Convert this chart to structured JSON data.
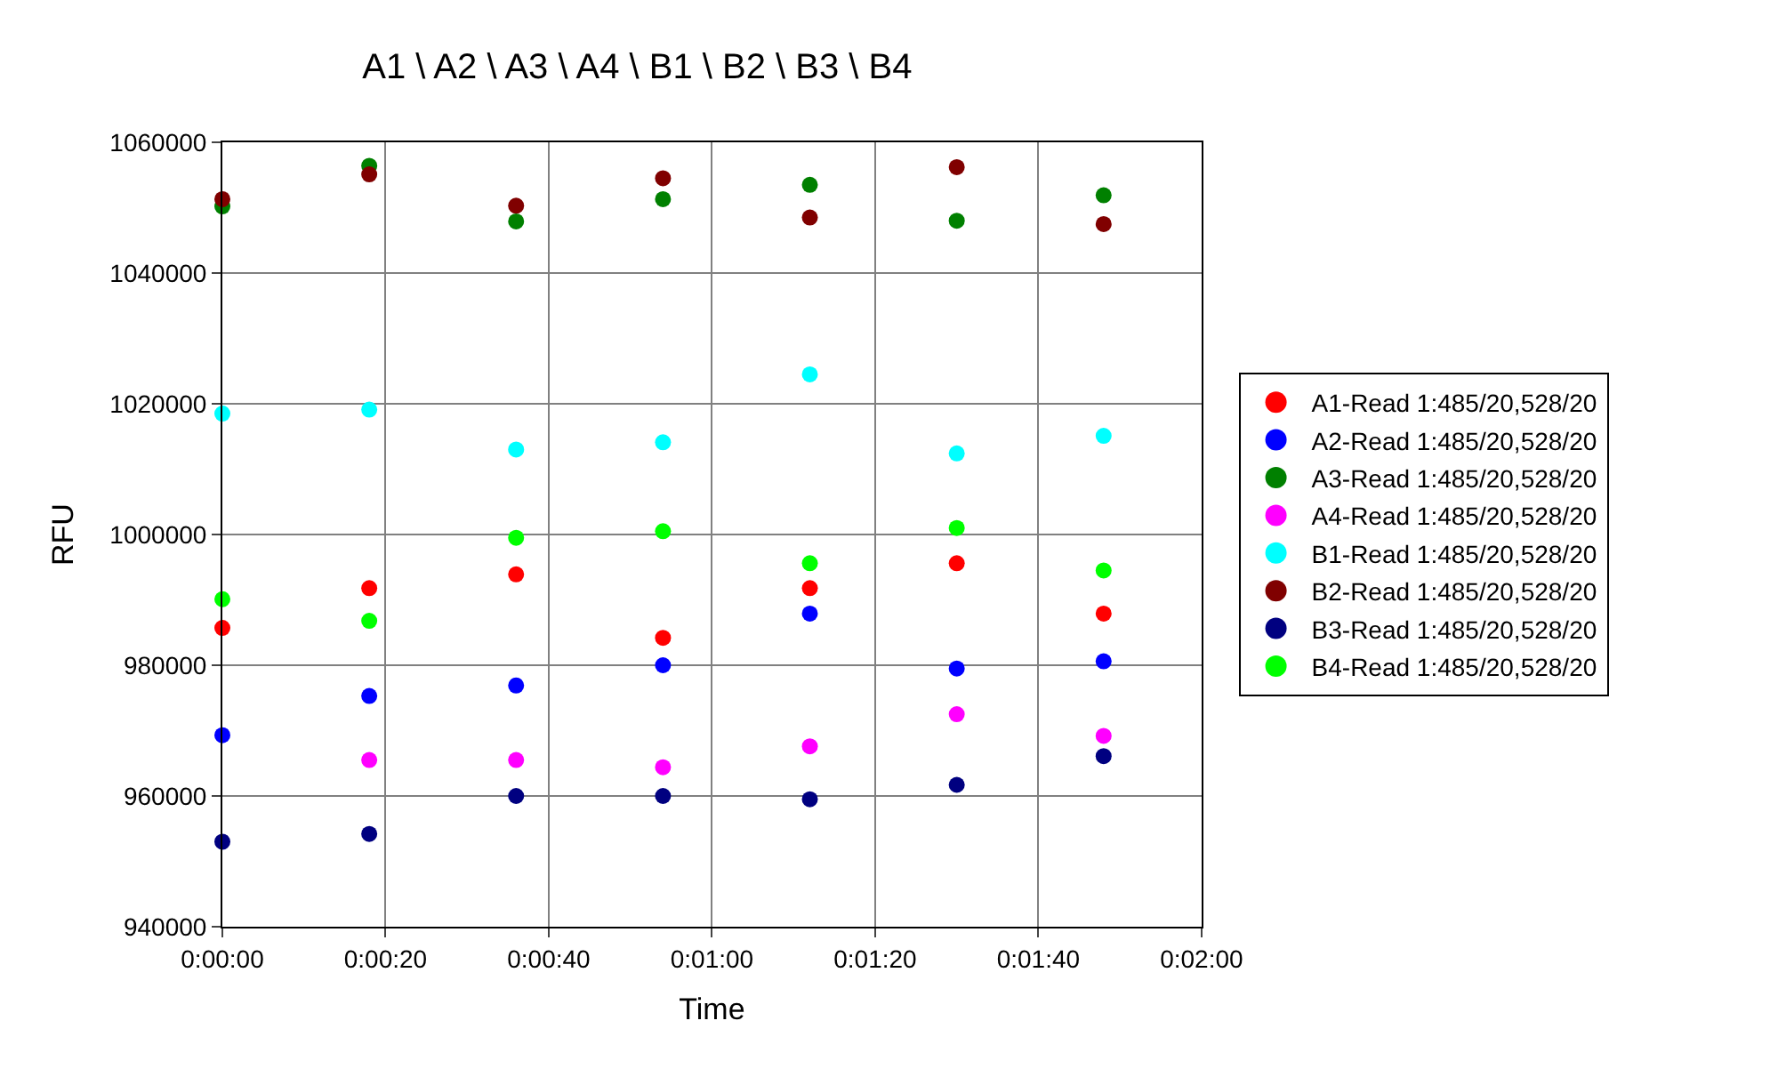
{
  "chart_data": {
    "type": "scatter",
    "title": "A1 \\ A2 \\ A3 \\ A4 \\ B1 \\ B2 \\ B3 \\ B4",
    "xlabel": "Time",
    "ylabel": "RFU",
    "x": [
      0,
      18,
      36,
      54,
      72,
      90,
      108
    ],
    "series": [
      {
        "name": "A1-Read 1:485/20,528/20",
        "color": "#ff0000",
        "values": [
          985700,
          991800,
          993900,
          984200,
          991800,
          995600,
          987900
        ]
      },
      {
        "name": "A2-Read 1:485/20,528/20",
        "color": "#0000ff",
        "values": [
          969300,
          975300,
          976900,
          980000,
          987900,
          979500,
          980600
        ]
      },
      {
        "name": "A3-Read 1:485/20,528/20",
        "color": "#008000",
        "values": [
          1050200,
          1056400,
          1047900,
          1051300,
          1053500,
          1048000,
          1051900
        ]
      },
      {
        "name": "A4-Read 1:485/20,528/20",
        "color": "#ff00ff",
        "values": [
          null,
          965500,
          965500,
          964400,
          967600,
          972500,
          969200
        ]
      },
      {
        "name": "B1-Read 1:485/20,528/20",
        "color": "#00ffff",
        "values": [
          1018500,
          1019100,
          1013000,
          1014100,
          1024500,
          1012400,
          1015100
        ]
      },
      {
        "name": "B2-Read 1:485/20,528/20",
        "color": "#800000",
        "values": [
          1051300,
          1055100,
          1050300,
          1054500,
          1048500,
          1056200,
          1047500
        ]
      },
      {
        "name": "B3-Read 1:485/20,528/20",
        "color": "#000080",
        "values": [
          953000,
          954200,
          960000,
          960000,
          959500,
          961700,
          966100
        ]
      },
      {
        "name": "B4-Read 1:485/20,528/20",
        "color": "#00ff00",
        "values": [
          990100,
          986800,
          999500,
          1000500,
          995600,
          1001000,
          994500
        ]
      }
    ],
    "xlim": [
      0,
      120
    ],
    "xticks": [
      {
        "value": 0,
        "label": "0:00:00"
      },
      {
        "value": 20,
        "label": "0:00:20"
      },
      {
        "value": 40,
        "label": "0:00:40"
      },
      {
        "value": 60,
        "label": "0:01:00"
      },
      {
        "value": 80,
        "label": "0:01:20"
      },
      {
        "value": 100,
        "label": "0:01:40"
      },
      {
        "value": 120,
        "label": "0:02:00"
      }
    ],
    "ylim": [
      940000,
      1060000
    ],
    "yticks": [
      940000,
      960000,
      980000,
      1000000,
      1020000,
      1040000,
      1060000
    ],
    "grid": true,
    "legend": "right",
    "marker": "circle"
  }
}
